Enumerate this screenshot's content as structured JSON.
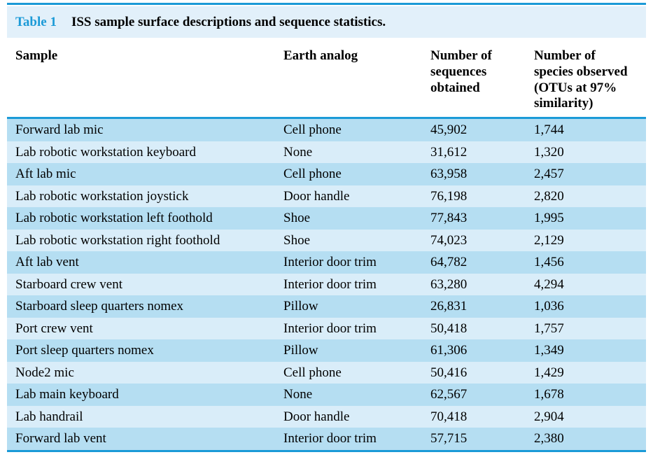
{
  "title": {
    "label": "Table 1",
    "caption": "ISS sample surface descriptions and sequence statistics."
  },
  "columns": [
    "Sample",
    "Earth analog",
    "Number of\nsequences\nobtained",
    "Number of\nspecies observed\n(OTUs at 97%\nsimilarity)"
  ],
  "rows": [
    {
      "sample": "Forward lab mic",
      "earth_analog": "Cell phone",
      "sequences_obtained": "45,902",
      "species_observed": "1,744"
    },
    {
      "sample": "Lab robotic workstation keyboard",
      "earth_analog": "None",
      "sequences_obtained": "31,612",
      "species_observed": "1,320"
    },
    {
      "sample": "Aft lab mic",
      "earth_analog": "Cell phone",
      "sequences_obtained": "63,958",
      "species_observed": "2,457"
    },
    {
      "sample": "Lab robotic workstation joystick",
      "earth_analog": "Door handle",
      "sequences_obtained": "76,198",
      "species_observed": "2,820"
    },
    {
      "sample": "Lab robotic workstation left foothold",
      "earth_analog": "Shoe",
      "sequences_obtained": "77,843",
      "species_observed": "1,995"
    },
    {
      "sample": "Lab robotic workstation right foothold",
      "earth_analog": "Shoe",
      "sequences_obtained": "74,023",
      "species_observed": "2,129"
    },
    {
      "sample": "Aft lab vent",
      "earth_analog": "Interior door trim",
      "sequences_obtained": "64,782",
      "species_observed": "1,456"
    },
    {
      "sample": "Starboard crew vent",
      "earth_analog": "Interior door trim",
      "sequences_obtained": "63,280",
      "species_observed": "4,294"
    },
    {
      "sample": "Starboard sleep quarters nomex",
      "earth_analog": "Pillow",
      "sequences_obtained": "26,831",
      "species_observed": "1,036"
    },
    {
      "sample": "Port crew vent",
      "earth_analog": "Interior door trim",
      "sequences_obtained": "50,418",
      "species_observed": "1,757"
    },
    {
      "sample": "Port sleep quarters nomex",
      "earth_analog": "Pillow",
      "sequences_obtained": "61,306",
      "species_observed": "1,349"
    },
    {
      "sample": "Node2 mic",
      "earth_analog": "Cell phone",
      "sequences_obtained": "50,416",
      "species_observed": "1,429"
    },
    {
      "sample": "Lab main keyboard",
      "earth_analog": "None",
      "sequences_obtained": "62,567",
      "species_observed": "1,678"
    },
    {
      "sample": "Lab handrail",
      "earth_analog": "Door handle",
      "sequences_obtained": "70,418",
      "species_observed": "2,904"
    },
    {
      "sample": "Forward lab vent",
      "earth_analog": "Interior door trim",
      "sequences_obtained": "57,715",
      "species_observed": "2,380"
    }
  ],
  "colors": {
    "accent_blue": "#1b9ad7",
    "title_bar_bg": "#e2f0fa",
    "row_dark": "#b5def2",
    "row_light": "#d9edf9",
    "text_color": "#000000"
  }
}
